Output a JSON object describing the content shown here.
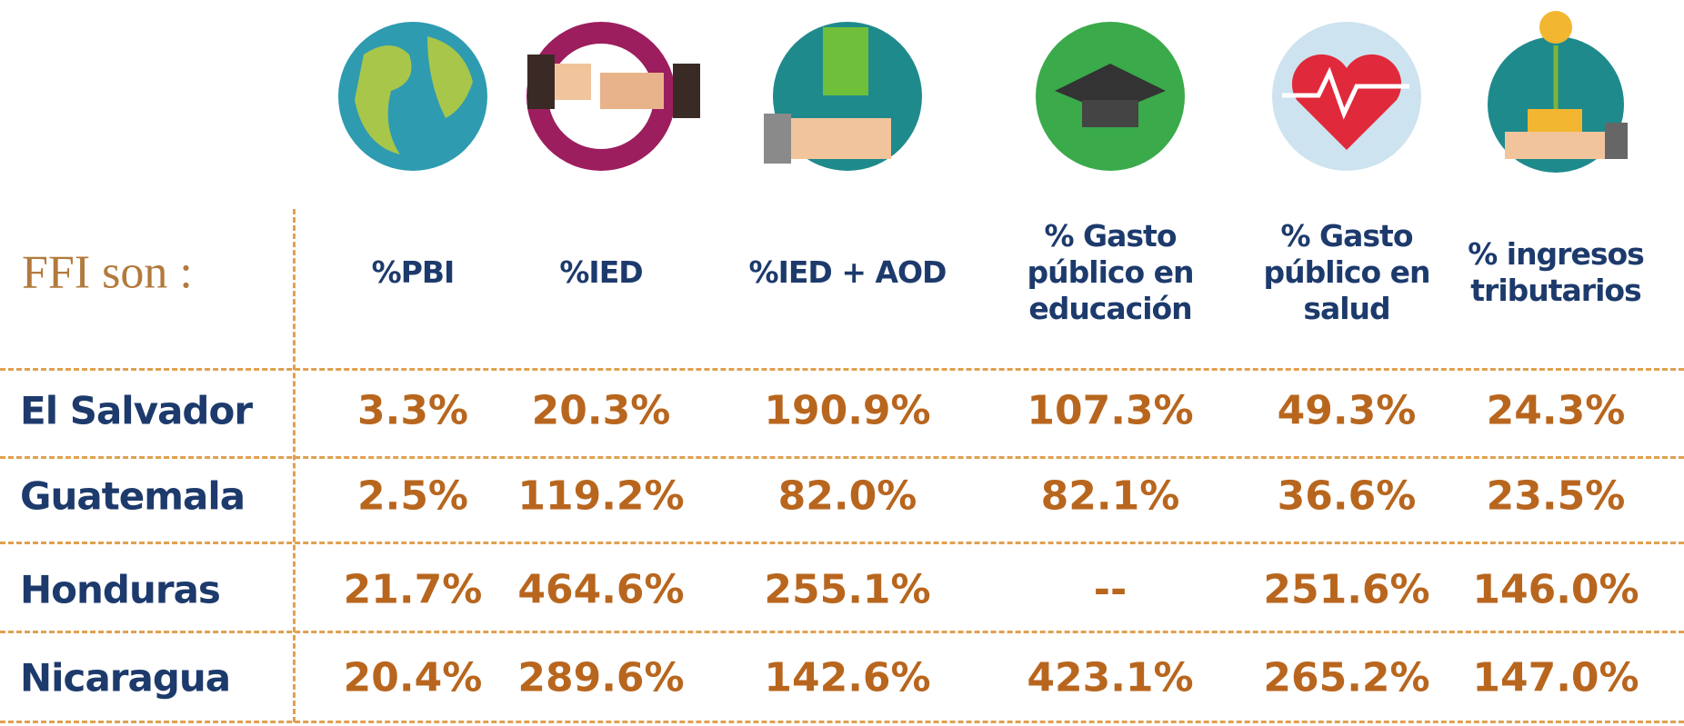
{
  "table": {
    "corner": "FFI son :",
    "columns": [
      [
        "%PBI"
      ],
      [
        "%IED"
      ],
      [
        "%IED + AOD"
      ],
      [
        "% Gasto",
        "público en",
        "educación"
      ],
      [
        "% Gasto",
        "público en",
        "salud"
      ],
      [
        "% ingresos",
        "tributarios"
      ]
    ],
    "rows": [
      [
        "El Salvador",
        "3.3%",
        "20.3%",
        "190.9%",
        "107.3%",
        "49.3%",
        "24.3%"
      ],
      [
        "Guatemala",
        "2.5%",
        "119.2%",
        "82.0%",
        "82.1%",
        "36.6%",
        "23.5%"
      ],
      [
        "Honduras",
        "21.7%",
        "464.6%",
        "255.1%",
        "--",
        "251.6%",
        "146.0%"
      ],
      [
        "Nicaragua",
        "20.4%",
        "289.6%",
        "142.6%",
        "423.1%",
        "265.2%",
        "147.0%"
      ]
    ]
  }
}
